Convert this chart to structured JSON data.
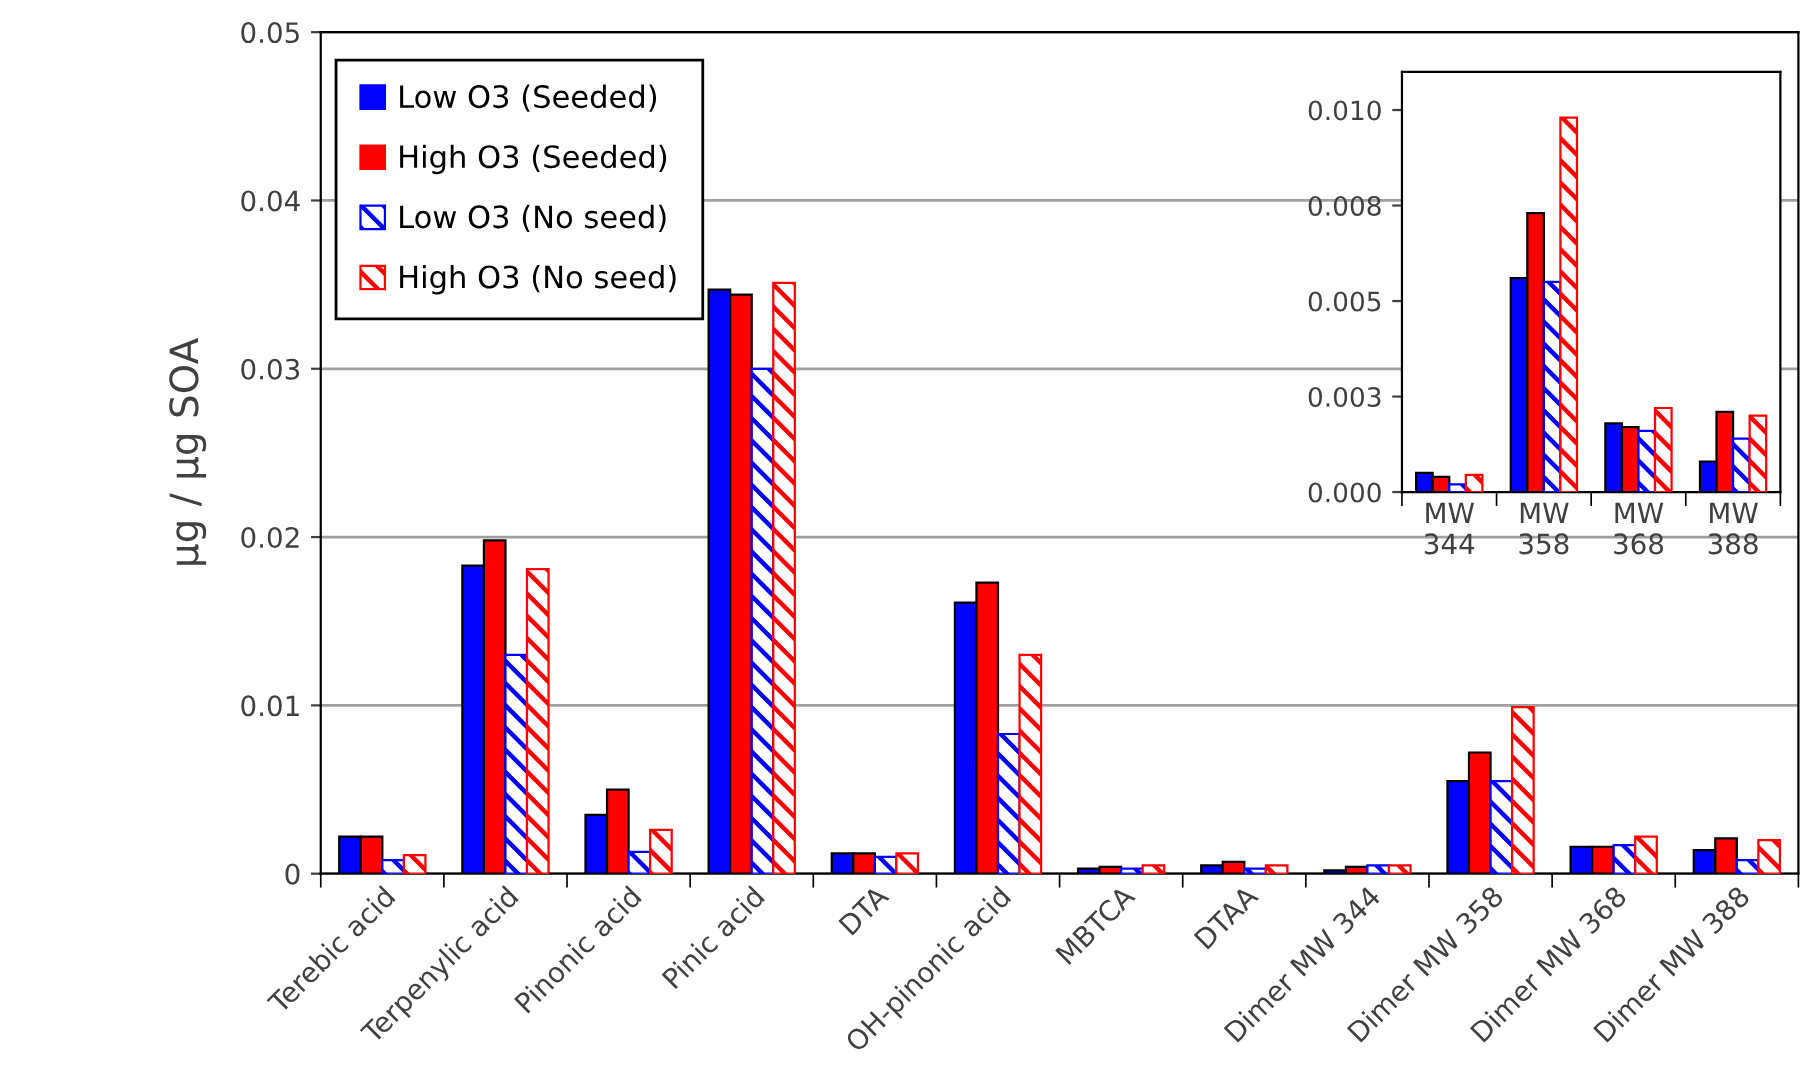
{
  "chart_data": [
    {
      "type": "bar",
      "ylabel": "µg / µg SOA",
      "categories": [
        "Terebic acid",
        "Terpenylic acid",
        "Pinonic acid",
        "Pinic acid",
        "DTA",
        "OH-pinonic acid",
        "MBTCA",
        "DTAA",
        "Dimer MW 344",
        "Dimer MW 358",
        "Dimer MW 368",
        "Dimer MW 388"
      ],
      "series": [
        {
          "name": "Low O3 (Seeded)",
          "color": "#0000ff",
          "values": [
            0.0022,
            0.0183,
            0.0035,
            0.0347,
            0.0012,
            0.0161,
            0.0003,
            0.0005,
            0.0002,
            0.0055,
            0.0016,
            0.0014
          ]
        },
        {
          "name": "High O3 (Seeded)",
          "color": "#ff0000",
          "values": [
            0.0022,
            0.0198,
            0.005,
            0.0344,
            0.0012,
            0.0173,
            0.0004,
            0.0007,
            0.0004,
            0.0072,
            0.0016,
            0.0021
          ]
        },
        {
          "name": "Low O3 (No seed)",
          "color": "#0000ff",
          "values": [
            0.0008,
            0.013,
            0.0013,
            0.03,
            0.001,
            0.0083,
            0.0003,
            0.0003,
            0.0005,
            0.0055,
            0.0017,
            0.0008
          ]
        },
        {
          "name": "High O3 (No seed)",
          "color": "#ff0000",
          "values": [
            0.0011,
            0.0181,
            0.0026,
            0.0351,
            0.0012,
            0.013,
            0.0005,
            0.0005,
            0.0005,
            0.0099,
            0.0022,
            0.002
          ]
        }
      ],
      "ylim": [
        0,
        0.05
      ],
      "yticks": [
        0,
        0.01,
        0.02,
        0.03,
        0.04,
        0.05
      ],
      "grid": "y",
      "legend": "top left"
    },
    {
      "type": "bar",
      "categories": [
        "MW\n344",
        "MW\n358",
        "MW\n368",
        "MW\n388"
      ],
      "series": [
        {
          "color": "#0000ff",
          "values": [
            0.0005,
            0.0056,
            0.0018,
            0.0008
          ]
        },
        {
          "color": "#ff0000",
          "values": [
            0.0004,
            0.0073,
            0.0017,
            0.0021
          ]
        },
        {
          "color": "#0000ff",
          "values": [
            0.0002,
            0.0055,
            0.0016,
            0.0014
          ]
        },
        {
          "color": "#ff0000",
          "values": [
            0.00045,
            0.0098,
            0.0022,
            0.002
          ]
        }
      ],
      "ylim": [
        0,
        0.011
      ],
      "yticks": [
        {
          "value": 0,
          "label": "0.000"
        },
        {
          "value": 0.0025,
          "label": "0.003"
        },
        {
          "value": 0.005,
          "label": "0.005"
        },
        {
          "value": 0.0075,
          "label": "0.008"
        },
        {
          "value": 0.01,
          "label": "0.010"
        }
      ],
      "grid": false
    }
  ]
}
